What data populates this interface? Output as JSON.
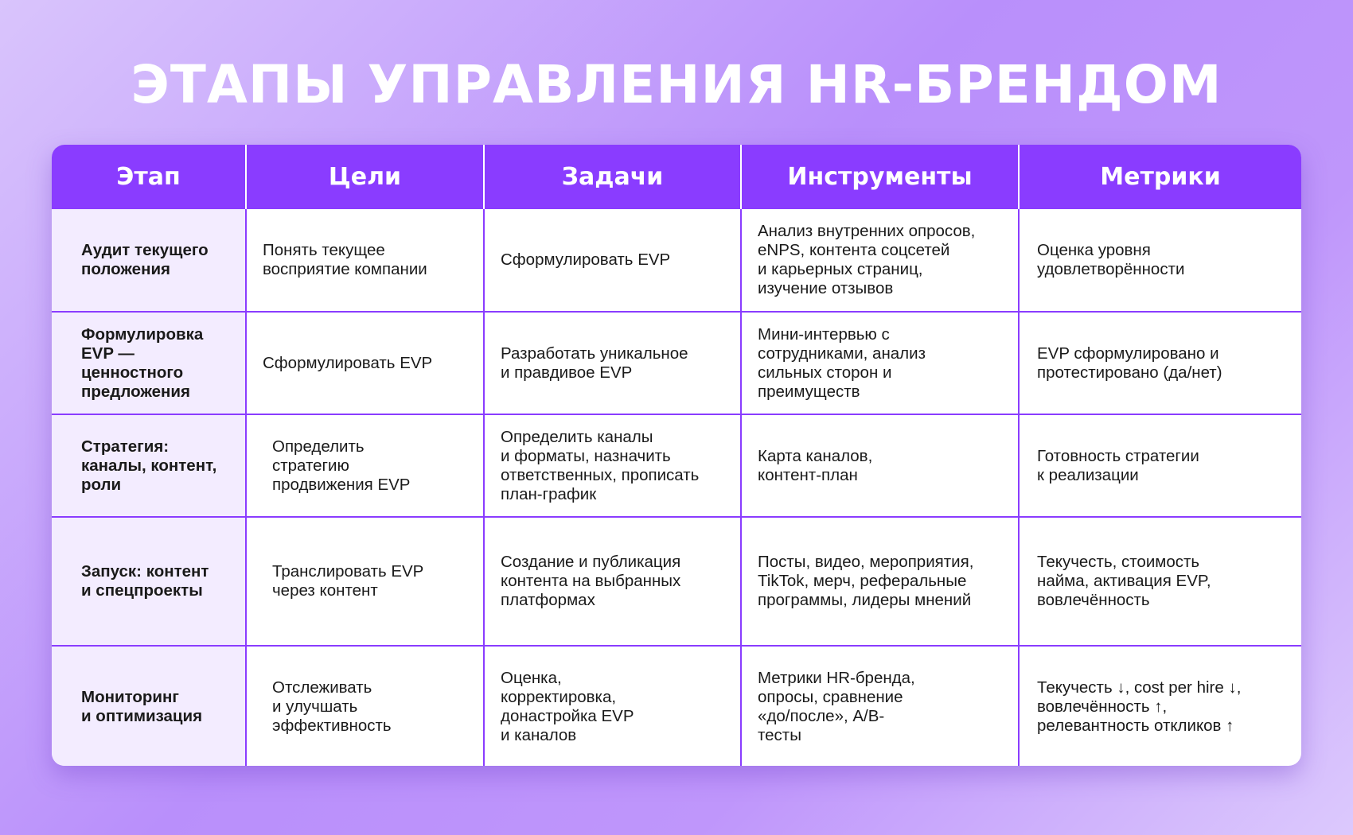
{
  "title": "ЭТАПЫ УПРАВЛЕНИЯ HR-БРЕНДОМ",
  "colors": {
    "header": "#8a3cff",
    "stage_cell": "#f3ecff",
    "border": "#8a3cff"
  },
  "table": {
    "headers": [
      "Этап",
      "Цели",
      "Задачи",
      "Инструменты",
      "Метрики"
    ],
    "rows": [
      [
        "Аудит текущего\nположения",
        "Понять текущее\nвосприятие компании",
        "Сформулировать EVP",
        "Анализ внутренних опросов,\neNPS, контента соцсетей\nи карьерных страниц,\nизучение отзывов",
        "Оценка уровня\nудовлетворённости"
      ],
      [
        "Формулировка\nEVP — ценностного\nпредложения",
        "Сформулировать EVP",
        "Разработать уникальное\nи правдивое EVP",
        "Мини-интервью с\nсотрудниками, анализ\nсильных сторон и\nпреимуществ",
        "EVP сформулировано и\nпротестировано (да/нет)"
      ],
      [
        "Стратегия:\nканалы, контент,\nроли",
        "Определить\nстратегию\nпродвижения EVP",
        "Определить каналы\nи форматы, назначить\nответственных, прописать\nплан-график",
        "Карта каналов,\nконтент-план",
        "Готовность стратегии\nк реализации"
      ],
      [
        "Запуск: контент\nи спецпроекты",
        "Транслировать EVP\nчерез контент",
        "Создание и публикация\nконтента на выбранных\nплатформах",
        "Посты, видео, мероприятия,\nTikTok, мерч, реферальные\nпрограммы, лидеры мнений",
        "Текучесть, стоимость\nнайма, активация EVP,\nвовлечённость"
      ],
      [
        "Мониторинг\nи оптимизация",
        "Отслеживать\nи улучшать\nэффективность",
        "Оценка,\nкорректировка,\nдонастройка EVP\nи каналов",
        "Метрики HR-бренда,\nопросы, сравнение\n«до/после», A/B-\nтесты",
        "Текучесть ↓, cost per hire ↓,\nвовлечённость ↑,\nрелевантность откликов ↑"
      ]
    ]
  }
}
